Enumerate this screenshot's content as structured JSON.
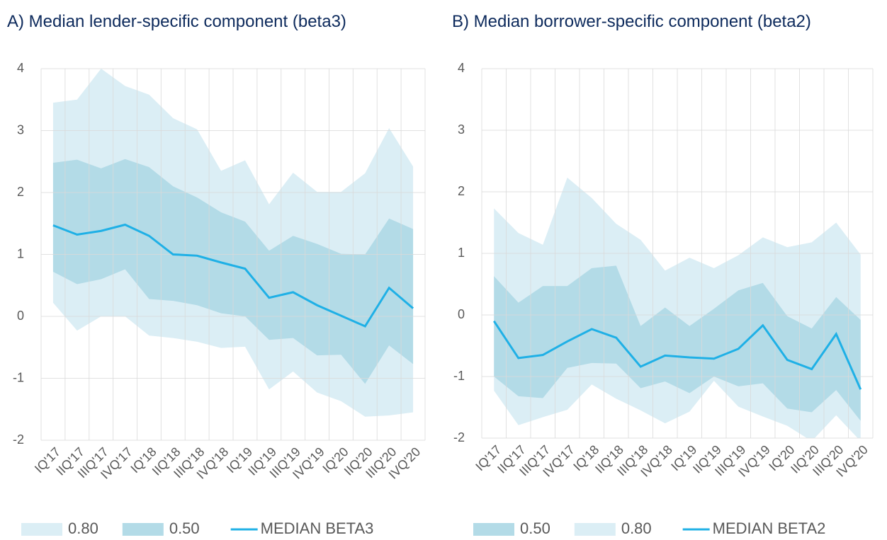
{
  "chart_data": [
    {
      "type": "fan",
      "title": "A) Median lender-specific component (beta3)",
      "categories": [
        "IQ'17",
        "IIQ'17",
        "IIIQ'17",
        "IVQ'17",
        "IQ'18",
        "IIQ'18",
        "IIIQ'18",
        "IVQ'18",
        "IQ'19",
        "IIQ'19",
        "IIIQ'19",
        "IVQ'19",
        "IQ'20",
        "IIQ'20",
        "IIIQ'20",
        "IVQ'20"
      ],
      "ylim": [
        -2,
        4
      ],
      "yticks": [
        -2,
        -1,
        0,
        1,
        2,
        3,
        4
      ],
      "grid": true,
      "series": [
        {
          "name": "0.80",
          "color": "#dbeef5",
          "upper": [
            3.45,
            3.5,
            4.0,
            3.72,
            3.58,
            3.2,
            3.02,
            2.35,
            2.52,
            1.81,
            2.32,
            2.01,
            2.01,
            2.31,
            3.04,
            2.42
          ],
          "lower": [
            0.22,
            -0.23,
            0.0,
            0.0,
            -0.31,
            -0.35,
            -0.41,
            -0.51,
            -0.49,
            -1.18,
            -0.89,
            -1.23,
            -1.37,
            -1.62,
            -1.6,
            -1.55
          ]
        },
        {
          "name": "0.50",
          "color": "#b3dbe7",
          "upper": [
            2.48,
            2.53,
            2.39,
            2.54,
            2.41,
            2.1,
            1.92,
            1.68,
            1.53,
            1.06,
            1.3,
            1.17,
            1.01,
            1.0,
            1.58,
            1.41
          ],
          "lower": [
            0.72,
            0.52,
            0.6,
            0.76,
            0.28,
            0.25,
            0.18,
            0.05,
            0.0,
            -0.38,
            -0.35,
            -0.63,
            -0.62,
            -1.09,
            -0.47,
            -0.77
          ]
        },
        {
          "name": "MEDIAN BETA3",
          "color": "#1fb0e6",
          "values": [
            1.47,
            1.32,
            1.38,
            1.48,
            1.3,
            1.0,
            0.98,
            0.87,
            0.77,
            0.3,
            0.39,
            0.18,
            0.01,
            -0.16,
            0.46,
            0.13
          ]
        }
      ]
    },
    {
      "type": "fan",
      "title": "B) Median borrower-specific component (beta2)",
      "categories": [
        "IQ'17",
        "IIQ'17",
        "IIIQ'17",
        "IVQ'17",
        "IQ'18",
        "IIQ'18",
        "IIIQ'18",
        "IVQ'18",
        "IQ'19",
        "IIQ'19",
        "IIIQ'19",
        "IVQ'19",
        "IQ'20",
        "IIQ'20",
        "IIIQ'20",
        "IVQ'20"
      ],
      "ylim": [
        -2,
        4
      ],
      "yticks": [
        -2,
        -1,
        0,
        1,
        2,
        3,
        4
      ],
      "grid": true,
      "series": [
        {
          "name": "0.50",
          "color": "#b3dbe7",
          "upper": [
            0.63,
            0.2,
            0.47,
            0.47,
            0.76,
            0.8,
            -0.18,
            0.12,
            -0.18,
            0.1,
            0.4,
            0.52,
            -0.02,
            -0.22,
            0.29,
            -0.08
          ],
          "lower": [
            -1.0,
            -1.32,
            -1.35,
            -0.86,
            -0.78,
            -0.79,
            -1.19,
            -1.08,
            -1.27,
            -1.0,
            -1.16,
            -1.11,
            -1.52,
            -1.58,
            -1.22,
            -1.72
          ]
        },
        {
          "name": "0.80",
          "color": "#dbeef5",
          "upper": [
            1.73,
            1.33,
            1.14,
            2.23,
            1.9,
            1.48,
            1.22,
            0.72,
            0.93,
            0.76,
            0.97,
            1.26,
            1.1,
            1.18,
            1.5,
            0.98
          ],
          "lower": [
            -1.23,
            -1.79,
            -1.66,
            -1.54,
            -1.13,
            -1.36,
            -1.55,
            -1.76,
            -1.57,
            -1.07,
            -1.49,
            -1.65,
            -1.8,
            -2.05,
            -1.63,
            -2.05
          ]
        },
        {
          "name": "MEDIAN BETA2",
          "color": "#1fb0e6",
          "values": [
            -0.1,
            -0.7,
            -0.65,
            -0.43,
            -0.23,
            -0.37,
            -0.84,
            -0.66,
            -0.69,
            -0.71,
            -0.55,
            -0.17,
            -0.73,
            -0.88,
            -0.31,
            -1.21
          ]
        }
      ]
    }
  ]
}
